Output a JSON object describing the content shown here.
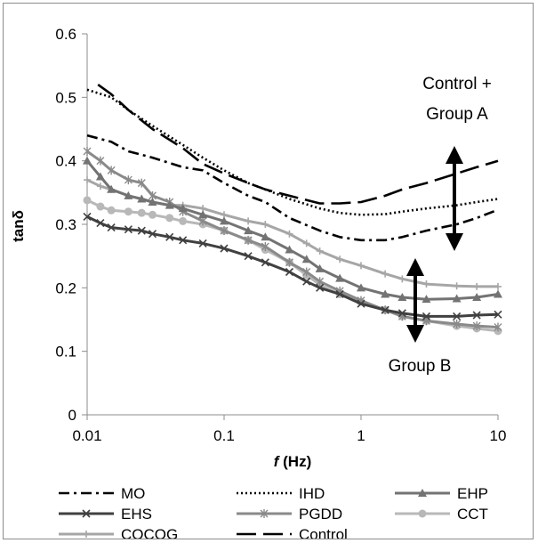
{
  "chart_data": {
    "type": "line",
    "title": "",
    "xlabel_italic": "f",
    "xlabel_rest": " (Hz)",
    "ylabel": "tanδ",
    "x_scale": "log",
    "xlim": [
      0.01,
      10
    ],
    "ylim": [
      0,
      0.6
    ],
    "grid": false,
    "legend_position": "bottom",
    "x_ticks": [
      {
        "value": 0.01,
        "label": "0.01"
      },
      {
        "value": 0.1,
        "label": "0.1"
      },
      {
        "value": 1,
        "label": "1"
      },
      {
        "value": 10,
        "label": "10"
      }
    ],
    "y_ticks": [
      {
        "value": 0,
        "label": "0"
      },
      {
        "value": 0.1,
        "label": "0.1"
      },
      {
        "value": 0.2,
        "label": "0.2"
      },
      {
        "value": 0.3,
        "label": "0.3"
      },
      {
        "value": 0.4,
        "label": "0.4"
      },
      {
        "value": 0.5,
        "label": "0.5"
      },
      {
        "value": 0.6,
        "label": "0.6"
      }
    ],
    "annotations": [
      {
        "id": "control-group-a",
        "lines": [
          "Control +",
          "Group A"
        ]
      },
      {
        "id": "group-b",
        "lines": [
          "Group B"
        ]
      }
    ],
    "series": [
      {
        "name": "MO",
        "color": "#000000",
        "dash": "dashdot",
        "marker": "none",
        "x": [
          0.01,
          0.015,
          0.02,
          0.03,
          0.05,
          0.07,
          0.1,
          0.15,
          0.2,
          0.3,
          0.5,
          0.7,
          1,
          1.5,
          2,
          3,
          5,
          7,
          10
        ],
        "y": [
          0.44,
          0.43,
          0.415,
          0.405,
          0.39,
          0.385,
          0.365,
          0.345,
          0.335,
          0.31,
          0.29,
          0.28,
          0.275,
          0.275,
          0.28,
          0.29,
          0.3,
          0.31,
          0.323
        ]
      },
      {
        "name": "IHD",
        "color": "#000000",
        "dash": "dot",
        "marker": "none",
        "x": [
          0.01,
          0.015,
          0.02,
          0.03,
          0.05,
          0.07,
          0.1,
          0.15,
          0.2,
          0.3,
          0.5,
          0.7,
          1,
          1.5,
          2,
          3,
          5,
          7,
          10
        ],
        "y": [
          0.512,
          0.5,
          0.48,
          0.455,
          0.425,
          0.405,
          0.385,
          0.365,
          0.355,
          0.34,
          0.325,
          0.318,
          0.315,
          0.316,
          0.32,
          0.325,
          0.33,
          0.335,
          0.34
        ]
      },
      {
        "name": "EHP",
        "color": "#737373",
        "dash": "solid",
        "marker": "triangle",
        "x": [
          0.01,
          0.0125,
          0.015,
          0.02,
          0.025,
          0.03,
          0.04,
          0.05,
          0.07,
          0.1,
          0.15,
          0.2,
          0.3,
          0.4,
          0.5,
          0.7,
          1,
          1.5,
          2,
          3,
          5,
          7,
          10
        ],
        "y": [
          0.4,
          0.375,
          0.355,
          0.345,
          0.34,
          0.335,
          0.33,
          0.325,
          0.315,
          0.305,
          0.29,
          0.28,
          0.26,
          0.245,
          0.23,
          0.215,
          0.2,
          0.19,
          0.185,
          0.182,
          0.183,
          0.185,
          0.19
        ]
      },
      {
        "name": "EHS",
        "color": "#404040",
        "dash": "solid",
        "marker": "x",
        "x": [
          0.01,
          0.0125,
          0.015,
          0.02,
          0.025,
          0.03,
          0.04,
          0.05,
          0.07,
          0.1,
          0.15,
          0.2,
          0.3,
          0.4,
          0.5,
          0.7,
          1,
          1.5,
          2,
          3,
          5,
          7,
          10
        ],
        "y": [
          0.312,
          0.302,
          0.295,
          0.292,
          0.29,
          0.285,
          0.28,
          0.275,
          0.27,
          0.262,
          0.25,
          0.24,
          0.225,
          0.21,
          0.2,
          0.19,
          0.175,
          0.165,
          0.16,
          0.155,
          0.155,
          0.157,
          0.158
        ]
      },
      {
        "name": "PGDD",
        "color": "#8a8a8a",
        "dash": "solid",
        "marker": "star",
        "x": [
          0.01,
          0.0125,
          0.015,
          0.02,
          0.025,
          0.03,
          0.04,
          0.05,
          0.07,
          0.1,
          0.15,
          0.2,
          0.3,
          0.4,
          0.5,
          0.7,
          1,
          1.5,
          2,
          3,
          5,
          7,
          10
        ],
        "y": [
          0.415,
          0.4,
          0.385,
          0.37,
          0.365,
          0.345,
          0.335,
          0.32,
          0.305,
          0.29,
          0.275,
          0.265,
          0.24,
          0.225,
          0.21,
          0.195,
          0.18,
          0.165,
          0.155,
          0.148,
          0.143,
          0.14,
          0.138
        ]
      },
      {
        "name": "CCT",
        "color": "#b8b8b8",
        "dash": "solid",
        "marker": "circle",
        "x": [
          0.01,
          0.0125,
          0.015,
          0.02,
          0.025,
          0.03,
          0.04,
          0.05,
          0.07,
          0.1,
          0.15,
          0.2,
          0.3,
          0.4,
          0.5,
          0.7,
          1,
          1.5,
          2,
          3,
          5,
          7,
          10
        ],
        "y": [
          0.338,
          0.328,
          0.322,
          0.32,
          0.318,
          0.315,
          0.31,
          0.305,
          0.3,
          0.29,
          0.275,
          0.26,
          0.24,
          0.22,
          0.205,
          0.19,
          0.178,
          0.165,
          0.155,
          0.148,
          0.14,
          0.136,
          0.132
        ]
      },
      {
        "name": "COCOG",
        "color": "#a6a6a6",
        "dash": "solid",
        "marker": "plus",
        "x": [
          0.01,
          0.0125,
          0.015,
          0.02,
          0.025,
          0.03,
          0.04,
          0.05,
          0.07,
          0.1,
          0.15,
          0.2,
          0.3,
          0.4,
          0.5,
          0.7,
          1,
          1.5,
          2,
          3,
          5,
          7,
          10
        ],
        "y": [
          0.37,
          0.36,
          0.355,
          0.345,
          0.34,
          0.335,
          0.33,
          0.33,
          0.325,
          0.315,
          0.305,
          0.3,
          0.285,
          0.27,
          0.258,
          0.245,
          0.235,
          0.222,
          0.214,
          0.206,
          0.203,
          0.202,
          0.202
        ]
      },
      {
        "name": "Control",
        "color": "#000000",
        "dash": "longdash",
        "marker": "none",
        "x": [
          0.012,
          0.015,
          0.02,
          0.03,
          0.05,
          0.07,
          0.1,
          0.15,
          0.2,
          0.3,
          0.5,
          0.7,
          1,
          1.5,
          2,
          3,
          5,
          7,
          10
        ],
        "y": [
          0.52,
          0.505,
          0.48,
          0.45,
          0.42,
          0.395,
          0.38,
          0.365,
          0.355,
          0.345,
          0.333,
          0.333,
          0.335,
          0.345,
          0.355,
          0.365,
          0.38,
          0.39,
          0.4
        ]
      }
    ]
  }
}
